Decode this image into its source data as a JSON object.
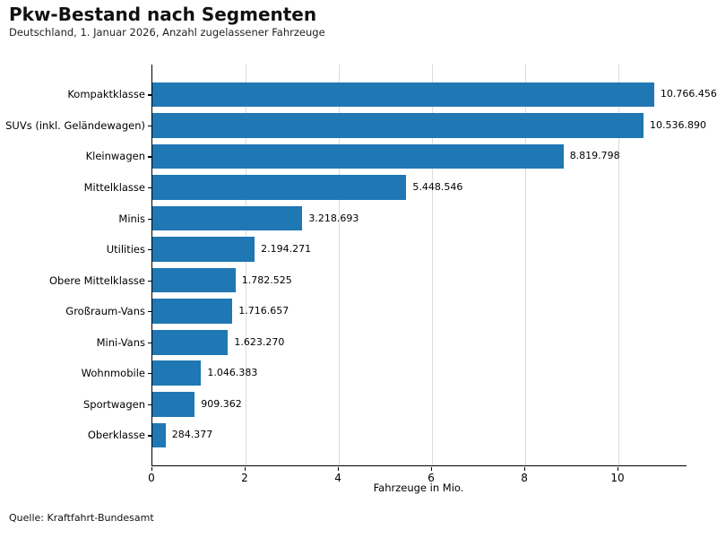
{
  "header": {
    "title": "Pkw-Bestand nach Segmenten",
    "subtitle": "Deutschland, 1. Januar 2026, Anzahl zugelassener Fahrzeuge"
  },
  "footer": {
    "source": "Quelle: Kraftfahrt-Bundesamt"
  },
  "chart_data": {
    "type": "bar",
    "orientation": "horizontal",
    "title": "Pkw-Bestand nach Segmenten",
    "subtitle": "Deutschland, 1. Januar 2026, Anzahl zugelassener Fahrzeuge",
    "xlabel": "Fahrzeuge in Mio.",
    "ylabel": "",
    "categories": [
      "Kompaktklasse",
      "SUVs (inkl. Geländewagen)",
      "Kleinwagen",
      "Mittelklasse",
      "Minis",
      "Utilities",
      "Obere Mittelklasse",
      "Großraum-Vans",
      "Mini-Vans",
      "Wohnmobile",
      "Sportwagen",
      "Oberklasse"
    ],
    "values": [
      10766456,
      10536890,
      8819798,
      5448546,
      3218693,
      2194271,
      1782525,
      1716657,
      1623270,
      1046383,
      909362,
      284377
    ],
    "value_labels": [
      "10.766.456",
      "10.536.890",
      "8.819.798",
      "5.448.546",
      "3.218.693",
      "2.194.271",
      "1.782.525",
      "1.716.657",
      "1.623.270",
      "1.046.383",
      "909.362",
      "284.377"
    ],
    "x_ticks": [
      0,
      2,
      4,
      6,
      8,
      10
    ],
    "xlim": [
      0,
      11.46
    ],
    "unit_divisor": 1000000,
    "grid": "vertical",
    "bar_color": "#1f77b4",
    "gridline_color": "#dcdcdc",
    "legend": "none"
  }
}
